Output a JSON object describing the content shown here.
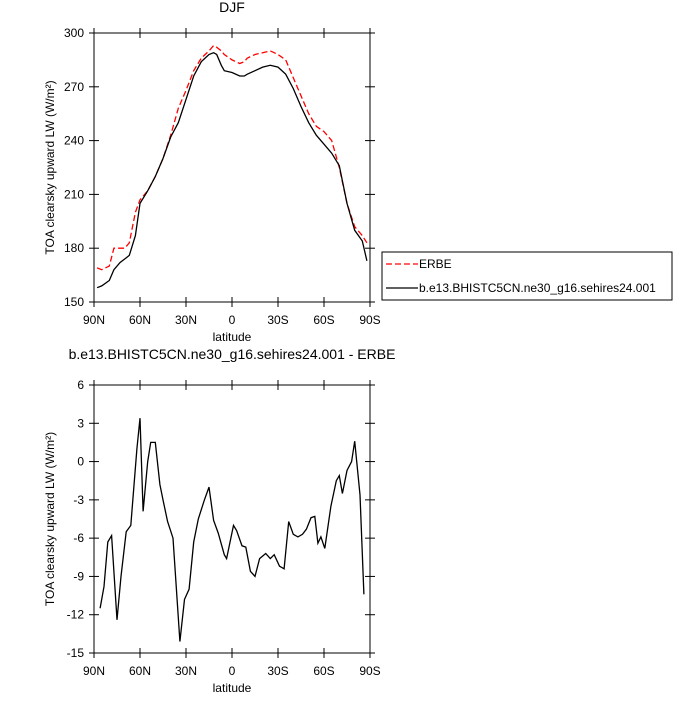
{
  "chart_data": [
    {
      "type": "line",
      "title": "DJF",
      "xlabel": "latitude",
      "ylabel": "TOA clearsky upward LW (W/m²)",
      "x": [
        88,
        85,
        80,
        77,
        73,
        70,
        67,
        63,
        60,
        55,
        50,
        45,
        40,
        35,
        30,
        25,
        20,
        15,
        12,
        10,
        7,
        5,
        0,
        -5,
        -8,
        -10,
        -15,
        -20,
        -25,
        -30,
        -35,
        -40,
        -45,
        -50,
        -55,
        -60,
        -65,
        -70,
        -75,
        -80,
        -85,
        -88
      ],
      "series": [
        {
          "name": "ERBE",
          "color": "#ff0000",
          "dash": true,
          "values": [
            169,
            168,
            170,
            180,
            180,
            180,
            183,
            200,
            207,
            212,
            220,
            230,
            243,
            258,
            268,
            279,
            286,
            290,
            293,
            292,
            290,
            288,
            285,
            283,
            284,
            286,
            288,
            289,
            290,
            288,
            285,
            275,
            265,
            255,
            248,
            245,
            240,
            225,
            205,
            192,
            187,
            183
          ]
        },
        {
          "name": "b.e13.BHISTC5CN.ne30_g16.sehires24.001",
          "color": "#000000",
          "dash": false,
          "values": [
            158,
            159,
            162,
            168,
            172,
            174,
            176,
            187,
            205,
            212,
            220,
            230,
            242,
            250,
            263,
            276,
            284,
            288,
            289,
            288,
            282,
            279,
            278,
            276,
            276,
            277,
            279,
            281,
            282,
            281,
            277,
            269,
            259,
            250,
            243,
            238,
            233,
            226,
            205,
            190,
            184,
            173
          ]
        }
      ],
      "xlim": [
        90,
        -90
      ],
      "xticks": [
        {
          "value": 90,
          "label": "90N"
        },
        {
          "value": 60,
          "label": "60N"
        },
        {
          "value": 30,
          "label": "30N"
        },
        0,
        {
          "value": -30,
          "label": "30S"
        },
        {
          "value": -60,
          "label": "60S"
        },
        {
          "value": -90,
          "label": "90S"
        }
      ],
      "ylim": [
        150,
        300
      ],
      "yticks": [
        150,
        180,
        210,
        240,
        270,
        300
      ],
      "legend": "right"
    },
    {
      "type": "line",
      "title": "b.e13.BHISTC5CN.ne30_g16.sehires24.001 - ERBE",
      "xlabel": "latitude",
      "ylabel": "TOA clearsky upward LW (W/m²)",
      "x": [
        86,
        83.5,
        81,
        78.5,
        75,
        72.4,
        69,
        66,
        62,
        60,
        58,
        55,
        53,
        50,
        47,
        45,
        42,
        38.5,
        34,
        31,
        28,
        25,
        22,
        18,
        15,
        12,
        9,
        5,
        3.5,
        -1,
        -3,
        -6.5,
        -9,
        -12,
        -15,
        -18,
        -22,
        -25,
        -27.5,
        -31,
        -34,
        -37,
        -40,
        -43,
        -46,
        -48.5,
        -51.5,
        -54,
        -56,
        -58,
        -60.5,
        -64.5,
        -68,
        -70,
        -72,
        -75,
        -78,
        -80,
        -83.5,
        -86
      ],
      "values": [
        -11.5,
        -9.8,
        -6.3,
        -5.8,
        -12.4,
        -9,
        -5.5,
        -5,
        1,
        3.4,
        -3.9,
        0,
        1.5,
        1.5,
        -1.8,
        -3,
        -4.7,
        -6,
        -14.1,
        -10.8,
        -10,
        -6.3,
        -4.5,
        -3,
        -2,
        -4.6,
        -5.6,
        -7.3,
        -7.6,
        -5,
        -5.4,
        -6.6,
        -6.7,
        -8.6,
        -9,
        -7.6,
        -7.2,
        -7.6,
        -7.3,
        -8.2,
        -8.4,
        -4.7,
        -5.7,
        -5.9,
        -5.7,
        -5.3,
        -4.4,
        -4.3,
        -6.4,
        -5.9,
        -6.8,
        -3.5,
        -1.5,
        -1.1,
        -2.5,
        -0.7,
        0,
        1.6,
        -2.6,
        -10.4
      ],
      "color": "#000000",
      "xlim": [
        90,
        -90
      ],
      "xticks": [
        {
          "value": 90,
          "label": "90N"
        },
        {
          "value": 60,
          "label": "60N"
        },
        {
          "value": 30,
          "label": "30N"
        },
        0,
        {
          "value": -30,
          "label": "30S"
        },
        {
          "value": -60,
          "label": "60S"
        },
        {
          "value": -90,
          "label": "90S"
        }
      ],
      "ylim": [
        -15,
        6
      ],
      "yticks": [
        -15,
        -12,
        -9,
        -6,
        -3,
        0,
        3,
        6
      ]
    }
  ]
}
